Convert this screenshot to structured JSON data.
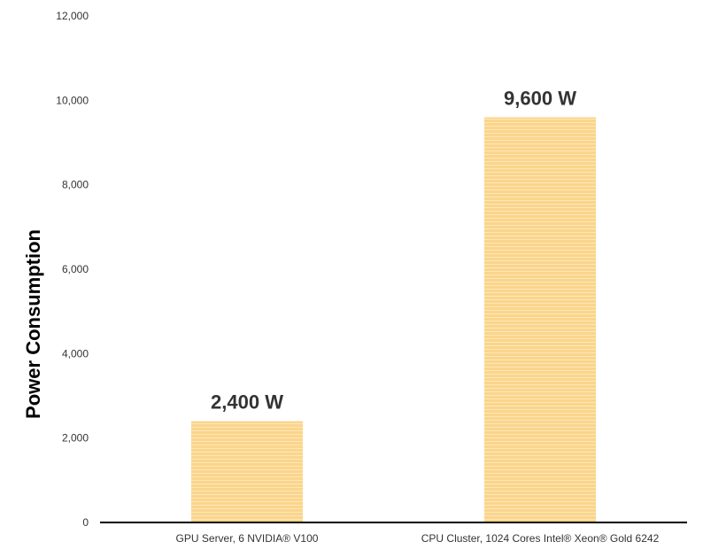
{
  "chart_data": {
    "type": "bar",
    "categories": [
      "GPU Server, 6 NVIDIA® V100",
      "CPU Cluster, 1024 Cores Intel® Xeon® Gold 6242"
    ],
    "values": [
      2400,
      9600
    ],
    "data_labels": [
      "2,400 W",
      "9,600 W"
    ],
    "title": "",
    "xlabel": "",
    "ylabel": "Power Consumption",
    "ylim": [
      0,
      12000
    ],
    "yticks": [
      0,
      2000,
      4000,
      6000,
      8000,
      10000,
      12000
    ],
    "ytick_labels": [
      "0",
      "2,000",
      "4,000",
      "6,000",
      "8,000",
      "10,000",
      "12,000"
    ],
    "grid": false,
    "bar_color": "#FAD58C",
    "bar_stripe_color": "#FDE7B7",
    "axis_color": "#000000"
  }
}
